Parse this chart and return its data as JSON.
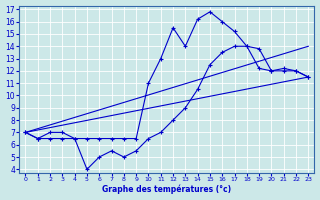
{
  "xlabel": "Graphe des températures (°c)",
  "bg_color": "#cce8e8",
  "grid_color": "#aacccc",
  "line_color": "#0000cc",
  "xlim": [
    -0.5,
    23.5
  ],
  "ylim": [
    3.7,
    17.3
  ],
  "xticks": [
    0,
    1,
    2,
    3,
    4,
    5,
    6,
    7,
    8,
    9,
    10,
    11,
    12,
    13,
    14,
    15,
    16,
    17,
    18,
    19,
    20,
    21,
    22,
    23
  ],
  "yticks": [
    4,
    5,
    6,
    7,
    8,
    9,
    10,
    11,
    12,
    13,
    14,
    15,
    16,
    17
  ],
  "line1_x": [
    0,
    1,
    2,
    3,
    4,
    5,
    6,
    7,
    8,
    9,
    10,
    11,
    12,
    13,
    14,
    15,
    16,
    17,
    18,
    19,
    20,
    21,
    22,
    23
  ],
  "line1_y": [
    7.0,
    6.5,
    7.0,
    7.0,
    6.5,
    6.5,
    6.5,
    6.5,
    6.5,
    6.5,
    11.0,
    13.0,
    15.5,
    14.0,
    16.2,
    16.8,
    16.0,
    15.2,
    14.0,
    12.2,
    12.0,
    12.0,
    12.0,
    11.5
  ],
  "line2_x": [
    0,
    1,
    2,
    3,
    4,
    5,
    6,
    7,
    8,
    9,
    10,
    11,
    12,
    13,
    14,
    15,
    16,
    17,
    18,
    19,
    20,
    21,
    22,
    23
  ],
  "line2_y": [
    7.0,
    6.5,
    6.5,
    6.5,
    6.5,
    4.0,
    5.0,
    5.5,
    5.0,
    5.5,
    6.5,
    7.0,
    8.0,
    9.0,
    10.5,
    12.5,
    13.5,
    14.0,
    14.0,
    13.8,
    12.0,
    12.2,
    12.0,
    11.5
  ],
  "line3_x": [
    0,
    23
  ],
  "line3_y": [
    7.0,
    14.0
  ],
  "line4_x": [
    0,
    23
  ],
  "line4_y": [
    7.0,
    11.5
  ]
}
